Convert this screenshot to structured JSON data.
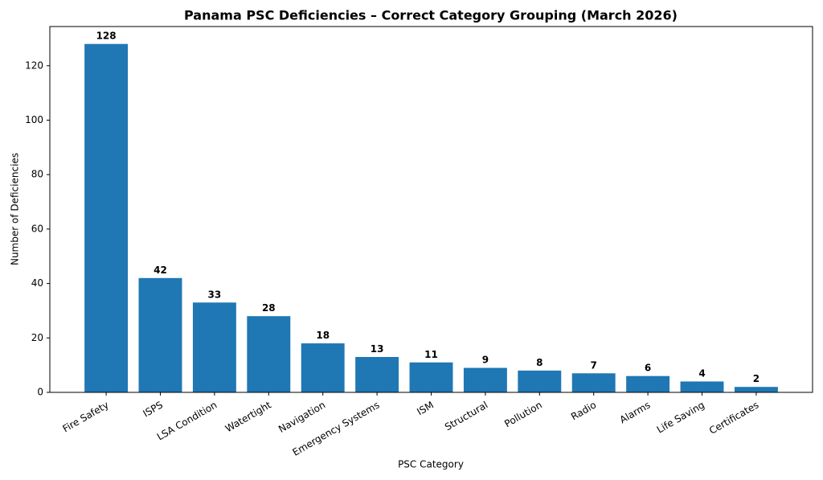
{
  "chart_data": {
    "type": "bar",
    "title": "Panama PSC Deficiencies – Correct Category Grouping (March 2026)",
    "x_label": "PSC Category",
    "y_label": "Number of Deficiencies",
    "categories": [
      "Fire Safety",
      "ISPS",
      "LSA Condition",
      "Watertight",
      "Navigation",
      "Emergency Systems",
      "ISM",
      "Structural",
      "Pollution",
      "Radio",
      "Alarms",
      "Life Saving",
      "Certificates"
    ],
    "values": [
      128,
      42,
      33,
      28,
      18,
      13,
      11,
      9,
      8,
      7,
      6,
      4,
      2
    ],
    "color": "#1f77b4",
    "ylim": [
      0,
      134.4
    ],
    "yticks": [
      0,
      20,
      40,
      60,
      80,
      100,
      120
    ],
    "grid": false
  }
}
